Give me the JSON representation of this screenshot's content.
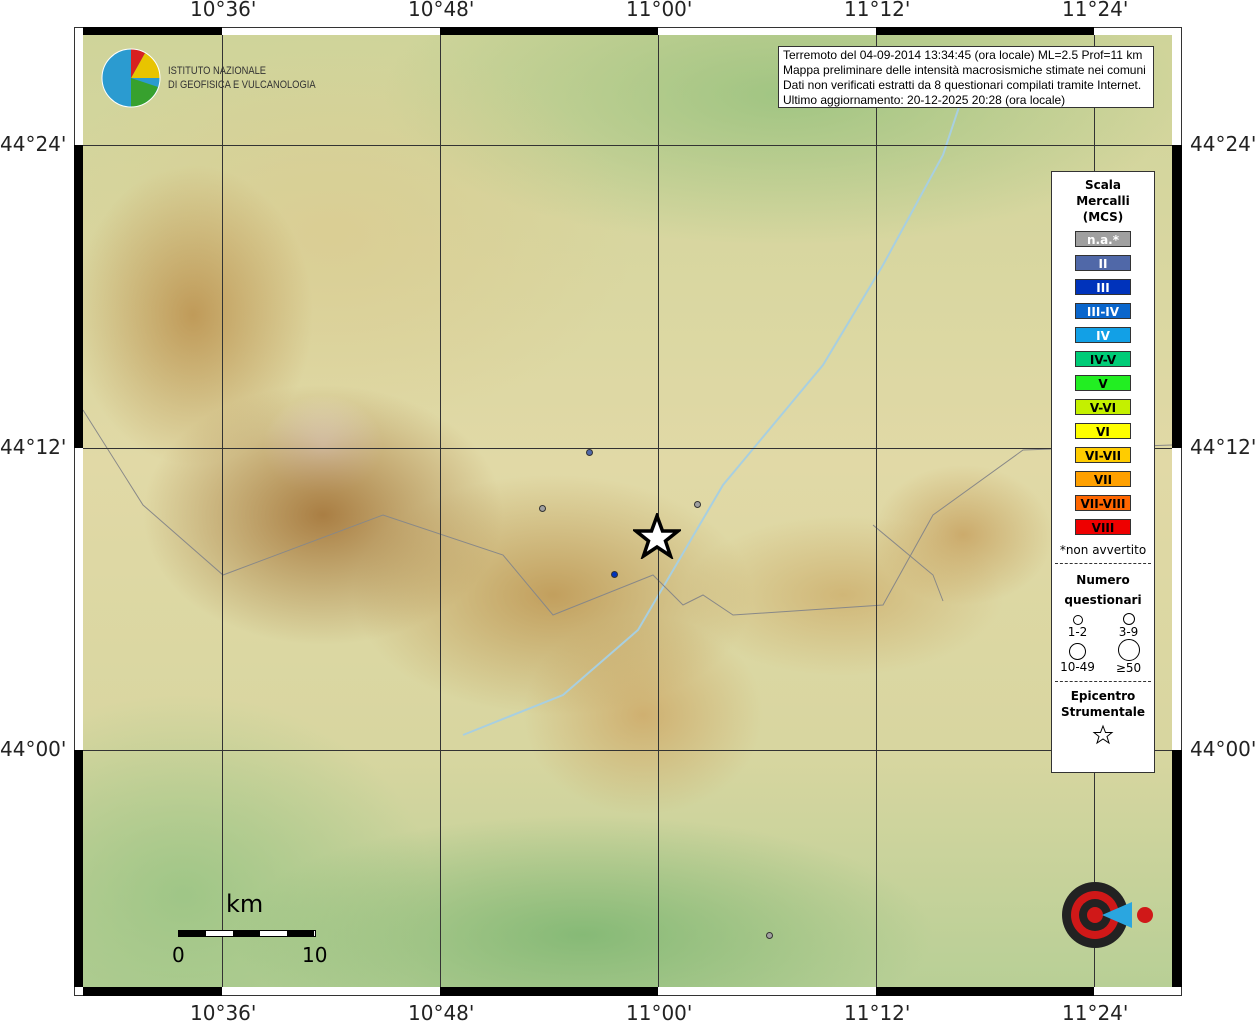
{
  "axes": {
    "lon_ticks": [
      "10°36'",
      "10°48'",
      "11°00'",
      "11°12'",
      "11°24'"
    ],
    "lat_ticks": [
      "44°24'",
      "44°12'",
      "44°00'"
    ]
  },
  "header": {
    "institute_line1": "ISTITUTO NAZIONALE",
    "institute_line2": "DI GEOFISICA E VULCANOLOGIA"
  },
  "info": {
    "lines": [
      "Terremoto del 04-09-2014 13:34:45 (ora locale) ML=2.5 Prof=11 km",
      "Mappa preliminare delle intensità macrosismiche stimate nei comuni",
      "Dati non verificati estratti da 8 questionari compilati tramite Internet.",
      "Ultimo aggiornamento: 20-12-2025 20:28 (ora locale)"
    ]
  },
  "legend": {
    "title": [
      "Scala",
      "Mercalli",
      "(MCS)"
    ],
    "scale": [
      {
        "label": "n.a.*",
        "color": "#a0a0a0",
        "text": "#fff"
      },
      {
        "label": "II",
        "color": "#5068a8",
        "text": "#fff"
      },
      {
        "label": "III",
        "color": "#0033bb",
        "text": "#fff"
      },
      {
        "label": "III-IV",
        "color": "#0a66cc",
        "text": "#fff"
      },
      {
        "label": "IV",
        "color": "#12a0e6",
        "text": "#fff"
      },
      {
        "label": "IV-V",
        "color": "#00cc77",
        "text": "#000"
      },
      {
        "label": "V",
        "color": "#22ee22",
        "text": "#000"
      },
      {
        "label": "V-VI",
        "color": "#c4f000",
        "text": "#000"
      },
      {
        "label": "VI",
        "color": "#ffff00",
        "text": "#000"
      },
      {
        "label": "VI-VII",
        "color": "#ffcc00",
        "text": "#000"
      },
      {
        "label": "VII",
        "color": "#ffa000",
        "text": "#000"
      },
      {
        "label": "VII-VIII",
        "color": "#ff6600",
        "text": "#000"
      },
      {
        "label": "VIII",
        "color": "#ee0000",
        "text": "#000"
      }
    ],
    "note": "*non avvertito",
    "count_title": [
      "Numero",
      "questionari"
    ],
    "counts": [
      "1-2",
      "3-9",
      "10-49",
      "≥50"
    ],
    "epicenter_title": [
      "Epicentro",
      "Strumentale"
    ]
  },
  "scalebar": {
    "unit": "km",
    "min": "0",
    "max": "10"
  },
  "observations": [
    {
      "intensity": "II"
    },
    {
      "intensity": "n.a."
    },
    {
      "intensity": "n.a."
    },
    {
      "intensity": "III"
    },
    {
      "intensity": "n.a."
    }
  ],
  "watermark": "haisentitoilterremoto.it www."
}
